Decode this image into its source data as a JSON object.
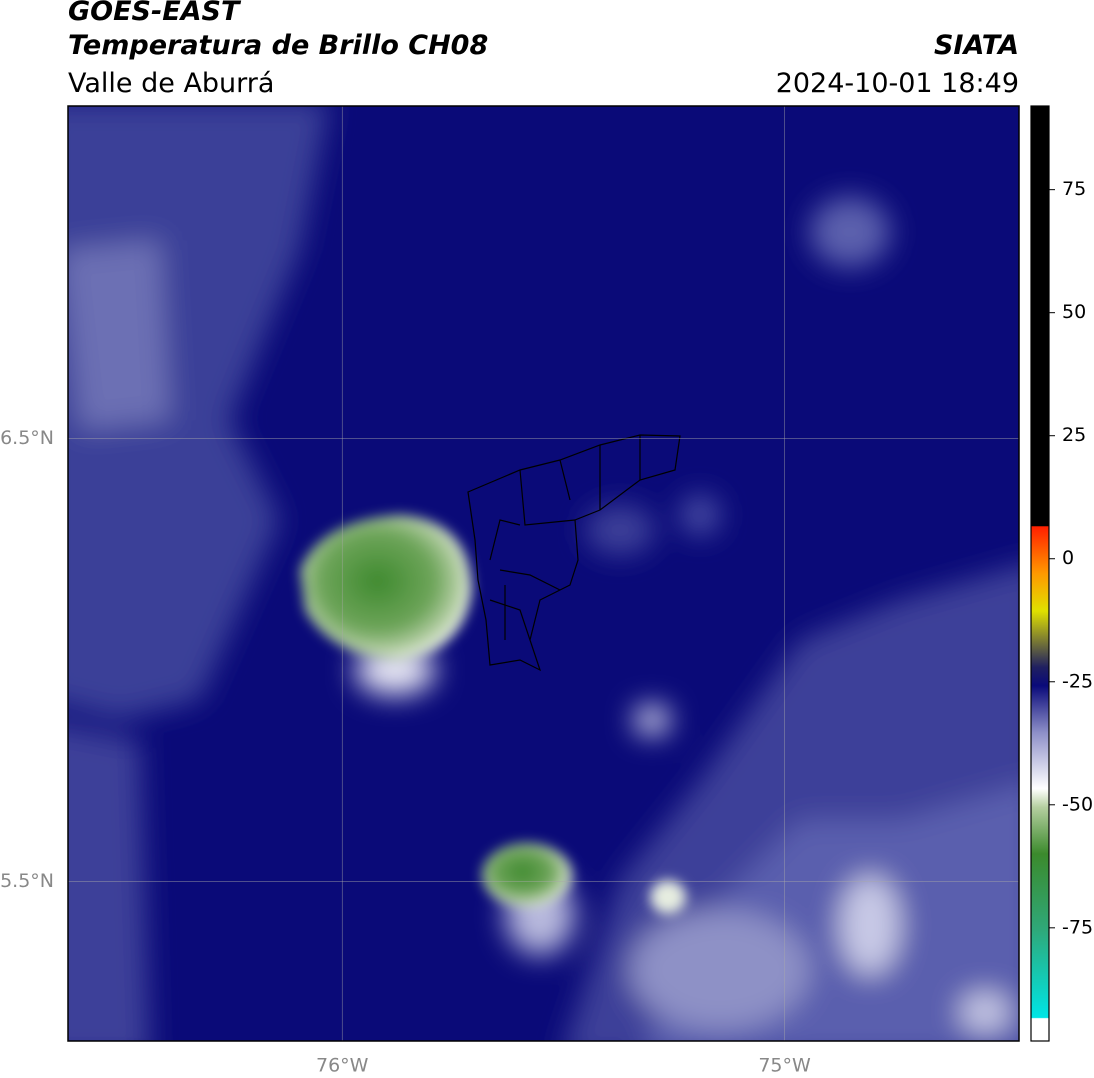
{
  "header": {
    "title": "GOES-EAST",
    "subtitle": "Temperatura de Brillo CH08",
    "region": "Valle de Aburrá",
    "source": "SIATA",
    "datetime": "2024-10-01 18:49"
  },
  "map": {
    "xlim": [
      -76.62,
      -74.47
    ],
    "ylim": [
      5.14,
      7.25
    ],
    "xticks": [
      {
        "value": -76,
        "label": "76°W"
      },
      {
        "value": -75,
        "label": "75°W"
      }
    ],
    "yticks": [
      {
        "value": 6.5,
        "label": "6.5°N"
      },
      {
        "value": 5.5,
        "label": "5.5°N"
      }
    ],
    "grid": true
  },
  "colorbar": {
    "lim": [
      -98,
      92
    ],
    "ticks": [
      75,
      50,
      25,
      0,
      -25,
      -50,
      -75
    ]
  }
}
